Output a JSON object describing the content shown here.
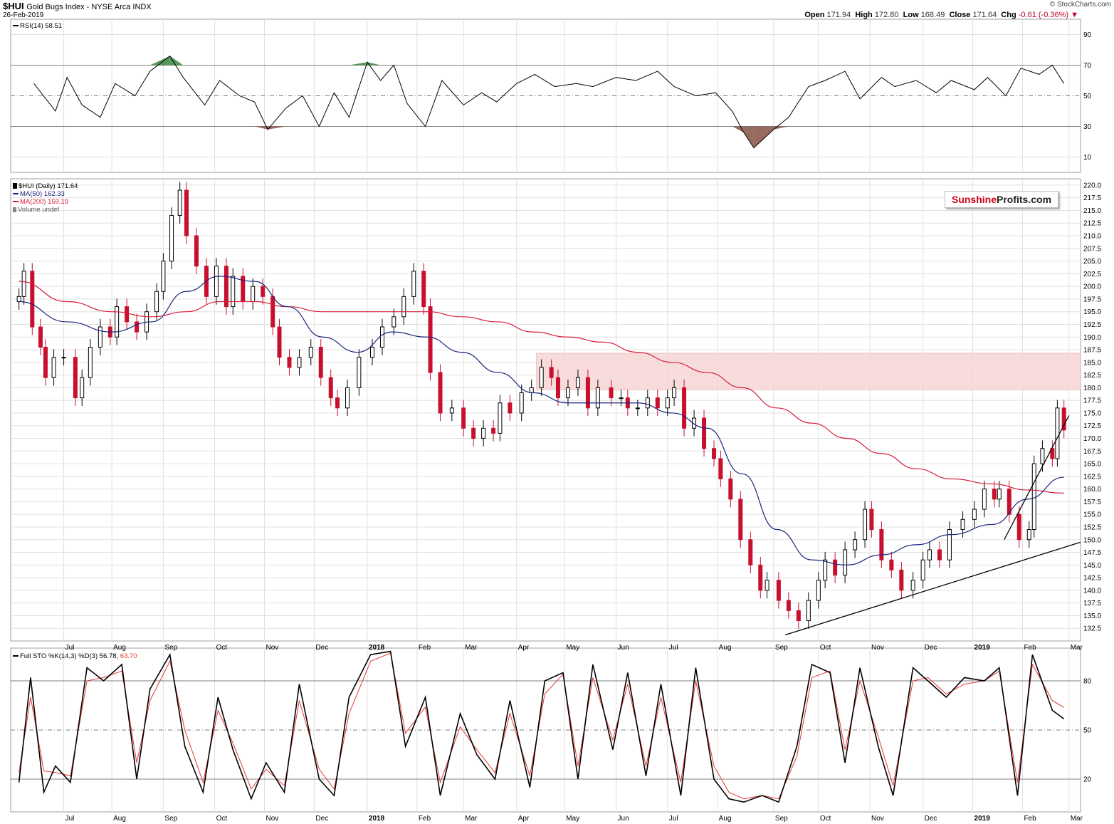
{
  "header": {
    "symbol": "$HUI",
    "title": "Gold Bugs Index - NYSE Arca  INDX",
    "date": "26-Feb-2019",
    "open_label": "Open",
    "open": "171.94",
    "high_label": "High",
    "high": "172.80",
    "low_label": "Low",
    "low": "168.49",
    "close_label": "Close",
    "close": "171.64",
    "chg_label": "Chg",
    "chg": "-0.61 (-0.36%)",
    "copyright": "© StockCharts.com"
  },
  "logo": {
    "part1": "Sunshine",
    "part2": "Profits.com"
  },
  "panels": {
    "rsi_label": "RSI(14) 58.51",
    "price_label": "$HUI (Daily) 171.64",
    "ma50_label": "MA(50) 162.33",
    "ma200_label": "MA(200) 159.19",
    "volume_label": "Volume undef",
    "sto_label": "Full STO %K(14,3) %D(3) 56.78,",
    "sto_d_value": "63.70"
  },
  "colors": {
    "up": "#000000",
    "down": "#c8102e",
    "ma50": "#1a237e",
    "ma200": "#d81e3c",
    "rsi": "#000000",
    "sto_k": "#000000",
    "sto_d": "#e53935",
    "zone": "#f7d6d6",
    "grid": "#e0e0e0",
    "rsi_fill": "#8d5b50"
  },
  "chart_data": [
    {
      "type": "line",
      "name": "RSI",
      "ylim": [
        0,
        100
      ],
      "levels": [
        30,
        50,
        70
      ],
      "yticks": [
        "90",
        "70",
        "50",
        "30",
        "10"
      ],
      "x": [
        "2017-06-15",
        "2017-06-28",
        "2017-07-05",
        "2017-07-14",
        "2017-07-25",
        "2017-08-03",
        "2017-08-15",
        "2017-08-24",
        "2017-09-05",
        "2017-09-13",
        "2017-09-26",
        "2017-10-05",
        "2017-10-17",
        "2017-10-26",
        "2017-11-03",
        "2017-11-14",
        "2017-11-24",
        "2017-12-04",
        "2017-12-13",
        "2017-12-22",
        "2018-01-02",
        "2018-01-10",
        "2018-01-18",
        "2018-01-26",
        "2018-02-06",
        "2018-02-16",
        "2018-03-01",
        "2018-03-12",
        "2018-03-21",
        "2018-04-02",
        "2018-04-13",
        "2018-04-25",
        "2018-05-08",
        "2018-05-18",
        "2018-06-01",
        "2018-06-13",
        "2018-06-26",
        "2018-07-06",
        "2018-07-19",
        "2018-07-31",
        "2018-08-10",
        "2018-08-17",
        "2018-08-23",
        "2018-09-04",
        "2018-09-13",
        "2018-09-25",
        "2018-10-05",
        "2018-10-17",
        "2018-10-26",
        "2018-11-08",
        "2018-11-16",
        "2018-11-29",
        "2018-12-11",
        "2018-12-20",
        "2019-01-03",
        "2019-01-11",
        "2019-01-22",
        "2019-01-31",
        "2019-02-11",
        "2019-02-19",
        "2019-02-26"
      ],
      "values": [
        58,
        40,
        62,
        44,
        36,
        58,
        50,
        66,
        76,
        62,
        44,
        60,
        50,
        46,
        28,
        42,
        50,
        30,
        52,
        36,
        72,
        60,
        70,
        45,
        30,
        60,
        44,
        52,
        46,
        58,
        64,
        56,
        58,
        56,
        62,
        60,
        66,
        56,
        50,
        52,
        40,
        26,
        16,
        28,
        36,
        56,
        60,
        66,
        48,
        62,
        56,
        60,
        52,
        60,
        54,
        62,
        50,
        68,
        64,
        70,
        58
      ]
    },
    {
      "type": "candlestick",
      "name": "$HUI (Daily)",
      "ylim": [
        130,
        221.25
      ],
      "yticks": [
        "220.0",
        "217.5",
        "215.0",
        "212.5",
        "210.0",
        "207.5",
        "205.0",
        "202.5",
        "200.0",
        "197.5",
        "195.0",
        "192.5",
        "190.0",
        "187.5",
        "185.0",
        "182.5",
        "180.0",
        "177.5",
        "175.0",
        "172.5",
        "170.0",
        "167.5",
        "165.0",
        "162.5",
        "160.0",
        "157.5",
        "155.0",
        "152.5",
        "150.0",
        "147.5",
        "145.0",
        "142.5",
        "140.0",
        "137.5",
        "135.0",
        "132.5"
      ],
      "xticks": [
        {
          "label": "Jul",
          "date": "2017-07-03"
        },
        {
          "label": "Aug",
          "date": "2017-08-01"
        },
        {
          "label": "Sep",
          "date": "2017-09-01"
        },
        {
          "label": "Oct",
          "date": "2017-10-02"
        },
        {
          "label": "Nov",
          "date": "2017-11-01"
        },
        {
          "label": "Dec",
          "date": "2017-12-01"
        },
        {
          "label": "2018",
          "date": "2018-01-02",
          "bold": true
        },
        {
          "label": "Feb",
          "date": "2018-02-01"
        },
        {
          "label": "Mar",
          "date": "2018-03-01"
        },
        {
          "label": "Apr",
          "date": "2018-04-02"
        },
        {
          "label": "May",
          "date": "2018-05-01"
        },
        {
          "label": "Jun",
          "date": "2018-06-01"
        },
        {
          "label": "Jul",
          "date": "2018-07-02"
        },
        {
          "label": "Aug",
          "date": "2018-08-01"
        },
        {
          "label": "Sep",
          "date": "2018-09-04"
        },
        {
          "label": "Oct",
          "date": "2018-10-01"
        },
        {
          "label": "Nov",
          "date": "2018-11-01"
        },
        {
          "label": "Dec",
          "date": "2018-12-03"
        },
        {
          "label": "2019",
          "date": "2019-01-02",
          "bold": true
        },
        {
          "label": "Feb",
          "date": "2019-02-01"
        },
        {
          "label": "Mar",
          "date": "2019-03-01"
        }
      ],
      "x": [
        "2017-06-06",
        "2017-06-09",
        "2017-06-14",
        "2017-06-19",
        "2017-06-22",
        "2017-06-27",
        "2017-07-03",
        "2017-07-10",
        "2017-07-14",
        "2017-07-19",
        "2017-07-25",
        "2017-07-31",
        "2017-08-04",
        "2017-08-10",
        "2017-08-16",
        "2017-08-22",
        "2017-08-28",
        "2017-09-01",
        "2017-09-06",
        "2017-09-11",
        "2017-09-15",
        "2017-09-21",
        "2017-09-27",
        "2017-10-03",
        "2017-10-09",
        "2017-10-13",
        "2017-10-19",
        "2017-10-25",
        "2017-10-31",
        "2017-11-06",
        "2017-11-10",
        "2017-11-16",
        "2017-11-22",
        "2017-11-29",
        "2017-12-05",
        "2017-12-11",
        "2017-12-15",
        "2017-12-21",
        "2017-12-28",
        "2018-01-05",
        "2018-01-11",
        "2018-01-18",
        "2018-01-24",
        "2018-01-30",
        "2018-02-05",
        "2018-02-09",
        "2018-02-15",
        "2018-02-22",
        "2018-03-01",
        "2018-03-07",
        "2018-03-13",
        "2018-03-19",
        "2018-03-23",
        "2018-03-29",
        "2018-04-05",
        "2018-04-11",
        "2018-04-17",
        "2018-04-23",
        "2018-04-27",
        "2018-05-03",
        "2018-05-09",
        "2018-05-15",
        "2018-05-21",
        "2018-05-29",
        "2018-06-04",
        "2018-06-08",
        "2018-06-14",
        "2018-06-20",
        "2018-06-26",
        "2018-07-02",
        "2018-07-06",
        "2018-07-12",
        "2018-07-18",
        "2018-07-24",
        "2018-07-30",
        "2018-08-03",
        "2018-08-09",
        "2018-08-15",
        "2018-08-21",
        "2018-08-27",
        "2018-08-31",
        "2018-09-07",
        "2018-09-13",
        "2018-09-19",
        "2018-09-25",
        "2018-10-01",
        "2018-10-05",
        "2018-10-11",
        "2018-10-17",
        "2018-10-23",
        "2018-10-29",
        "2018-11-02",
        "2018-11-08",
        "2018-11-14",
        "2018-11-20",
        "2018-11-27",
        "2018-12-03",
        "2018-12-07",
        "2018-12-13",
        "2018-12-19",
        "2018-12-27",
        "2019-01-03",
        "2019-01-09",
        "2019-01-15",
        "2019-01-18",
        "2019-01-24",
        "2019-01-30",
        "2019-02-05",
        "2019-02-08",
        "2019-02-13",
        "2019-02-19",
        "2019-02-22",
        "2019-02-26"
      ],
      "values": [
        198,
        203,
        192,
        188,
        182,
        186,
        186,
        178,
        182,
        188,
        192,
        190,
        196,
        193,
        191,
        195,
        199,
        205,
        214,
        219,
        210,
        204,
        198,
        204,
        196,
        202,
        197,
        200,
        198,
        192,
        186,
        184,
        186,
        188,
        182,
        178,
        176,
        180,
        186,
        188,
        192,
        194,
        198,
        203,
        196,
        183,
        175,
        176,
        172,
        170,
        172,
        171,
        177,
        175,
        179,
        180,
        184,
        182,
        178,
        180,
        182,
        176,
        180,
        178,
        178,
        176,
        176,
        178,
        176,
        178,
        180,
        172,
        174,
        168,
        166,
        162,
        158,
        150,
        145,
        140,
        142,
        138,
        136,
        134,
        138,
        142,
        146,
        143,
        148,
        150,
        156,
        152,
        146,
        144,
        140,
        142,
        146,
        148,
        146,
        152,
        154,
        156,
        160,
        158,
        160,
        155,
        150,
        152,
        165,
        168,
        166,
        176,
        171.64
      ]
    },
    {
      "type": "line",
      "name": "MA(50)",
      "x": [
        "2017-06-06",
        "2017-07-05",
        "2017-08-01",
        "2017-08-25",
        "2017-09-15",
        "2017-10-05",
        "2017-10-26",
        "2017-11-15",
        "2017-12-06",
        "2017-12-27",
        "2018-01-17",
        "2018-02-07",
        "2018-02-28",
        "2018-03-22",
        "2018-04-12",
        "2018-05-03",
        "2018-05-24",
        "2018-06-14",
        "2018-07-05",
        "2018-07-26",
        "2018-08-16",
        "2018-09-06",
        "2018-09-27",
        "2018-10-18",
        "2018-11-08",
        "2018-11-29",
        "2018-12-20",
        "2019-01-14",
        "2019-02-04",
        "2019-02-26"
      ],
      "values": [
        197,
        193,
        191,
        193,
        199,
        202,
        201,
        196,
        190,
        187,
        191,
        190,
        187,
        183,
        179,
        177,
        177,
        177,
        175,
        172,
        163,
        152,
        146,
        145,
        147,
        149,
        151,
        153,
        158,
        162.33
      ]
    },
    {
      "type": "line",
      "name": "MA(200)",
      "x": [
        "2017-06-06",
        "2017-07-05",
        "2017-08-01",
        "2017-08-25",
        "2017-09-15",
        "2017-10-05",
        "2017-10-26",
        "2017-11-15",
        "2017-12-06",
        "2017-12-27",
        "2018-01-17",
        "2018-02-07",
        "2018-02-28",
        "2018-03-22",
        "2018-04-12",
        "2018-05-03",
        "2018-05-24",
        "2018-06-14",
        "2018-07-05",
        "2018-07-26",
        "2018-08-16",
        "2018-09-06",
        "2018-09-27",
        "2018-10-18",
        "2018-11-08",
        "2018-11-29",
        "2018-12-20",
        "2019-01-14",
        "2019-02-04",
        "2019-02-26"
      ],
      "values": [
        201,
        197,
        195,
        194,
        195,
        197,
        197,
        196,
        195,
        195,
        195,
        195,
        194,
        193,
        191,
        190,
        189,
        187,
        185,
        183,
        180,
        176,
        173,
        170,
        167,
        164,
        162,
        161,
        159.8,
        159.19
      ]
    },
    {
      "type": "line",
      "name": "Full STO",
      "ylim": [
        0,
        100
      ],
      "levels": [
        20,
        50,
        80
      ],
      "yticks": [
        "80",
        "50",
        "20"
      ],
      "x": [
        "2017-06-06",
        "2017-06-13",
        "2017-06-21",
        "2017-06-28",
        "2017-07-07",
        "2017-07-17",
        "2017-07-27",
        "2017-08-07",
        "2017-08-16",
        "2017-08-24",
        "2017-09-05",
        "2017-09-14",
        "2017-09-25",
        "2017-10-04",
        "2017-10-13",
        "2017-10-24",
        "2017-11-02",
        "2017-11-13",
        "2017-11-22",
        "2017-12-04",
        "2017-12-13",
        "2017-12-22",
        "2018-01-04",
        "2018-01-16",
        "2018-01-25",
        "2018-02-06",
        "2018-02-15",
        "2018-02-27",
        "2018-03-09",
        "2018-03-20",
        "2018-03-29",
        "2018-04-10",
        "2018-04-19",
        "2018-04-30",
        "2018-05-09",
        "2018-05-18",
        "2018-05-30",
        "2018-06-08",
        "2018-06-19",
        "2018-06-28",
        "2018-07-10",
        "2018-07-19",
        "2018-07-30",
        "2018-08-08",
        "2018-08-17",
        "2018-08-28",
        "2018-09-07",
        "2018-09-18",
        "2018-09-27",
        "2018-10-08",
        "2018-10-17",
        "2018-10-26",
        "2018-11-06",
        "2018-11-15",
        "2018-11-27",
        "2018-12-06",
        "2018-12-17",
        "2018-12-28",
        "2019-01-09",
        "2019-01-18",
        "2019-01-29",
        "2019-02-07",
        "2019-02-19",
        "2019-02-26"
      ],
      "k_values": [
        18,
        82,
        12,
        28,
        18,
        88,
        80,
        90,
        20,
        75,
        96,
        40,
        12,
        70,
        38,
        8,
        30,
        12,
        78,
        20,
        10,
        70,
        96,
        98,
        40,
        70,
        10,
        60,
        35,
        20,
        68,
        15,
        80,
        85,
        20,
        90,
        38,
        85,
        22,
        78,
        10,
        88,
        20,
        8,
        6,
        10,
        6,
        40,
        90,
        85,
        30,
        88,
        40,
        10,
        88,
        80,
        70,
        82,
        80,
        88,
        10,
        96,
        62,
        56.78
      ],
      "d_values": [
        24,
        70,
        25,
        24,
        22,
        80,
        82,
        86,
        30,
        68,
        92,
        50,
        18,
        62,
        42,
        14,
        26,
        16,
        68,
        26,
        14,
        60,
        92,
        97,
        48,
        64,
        18,
        52,
        38,
        24,
        60,
        22,
        72,
        84,
        28,
        82,
        44,
        78,
        28,
        70,
        18,
        80,
        28,
        12,
        8,
        10,
        8,
        34,
        82,
        86,
        38,
        80,
        46,
        16,
        80,
        82,
        72,
        78,
        80,
        86,
        18,
        90,
        68,
        63.7
      ]
    }
  ]
}
